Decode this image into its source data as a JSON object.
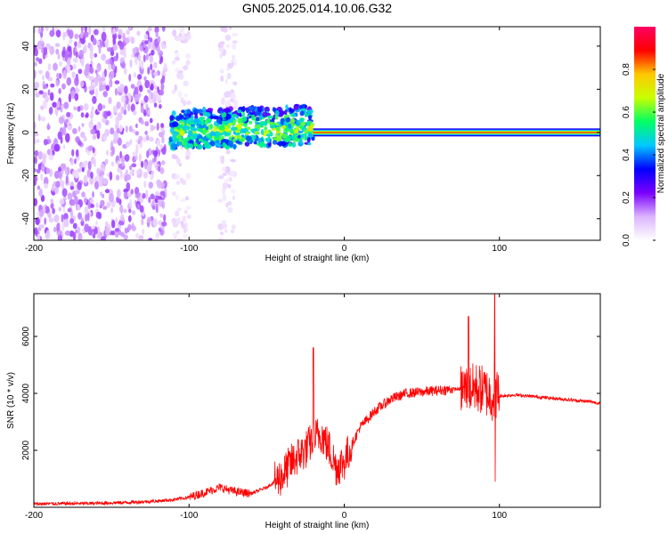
{
  "title": "GN05.2025.014.10.06.G32",
  "chart_data": [
    {
      "type": "heatmap",
      "title": "GN05.2025.014.10.06.G32",
      "xlabel": "Height of straight line (km)",
      "ylabel": "Frequency (Hz)",
      "xlim": [
        -200,
        165
      ],
      "ylim": [
        -50,
        49
      ],
      "x_ticks": [
        -200,
        -100,
        0,
        100
      ],
      "y_ticks": [
        -40,
        -20,
        0,
        20,
        40
      ],
      "grid": false,
      "colorbar": {
        "label": "Normalized spectral amplitude",
        "range": [
          0,
          1
        ],
        "ticks": [
          "0.0",
          "0.2",
          "0.4",
          "0.6",
          "0.8"
        ],
        "colors": [
          "#ffffff",
          "#dcb4ff",
          "#7a00ff",
          "#0000ff",
          "#00c8ff",
          "#00ff64",
          "#c8ff00",
          "#ffc800",
          "#ff0000",
          "#ff0064"
        ]
      },
      "regions": [
        {
          "x": [
            -200,
            -115
          ],
          "f": [
            -50,
            49
          ],
          "amplitude": 0.12,
          "pattern": "diffuse"
        },
        {
          "x": [
            -115,
            -60
          ],
          "f": [
            -50,
            49
          ],
          "amplitude": 0.05,
          "pattern": "sparse"
        },
        {
          "x": [
            -112,
            -20
          ],
          "f": [
            -8,
            10
          ],
          "amplitude": 0.35,
          "pattern": "band"
        },
        {
          "x": [
            -20,
            165
          ],
          "f": [
            -2,
            2
          ],
          "amplitude": 0.85,
          "pattern": "line"
        }
      ]
    },
    {
      "type": "line",
      "xlabel": "Height of straight line (km)",
      "ylabel": "SNR (10 * v/v)",
      "xlim": [
        -200,
        165
      ],
      "ylim": [
        0,
        7500
      ],
      "x_ticks": [
        -200,
        -100,
        0,
        100
      ],
      "y_ticks": [
        2000,
        4000,
        6000
      ],
      "grid": false,
      "color": "#ff0000",
      "series": [
        {
          "x": [
            -200,
            -180,
            -160,
            -140,
            -120,
            -110,
            -100,
            -90,
            -80,
            -75,
            -70,
            -60,
            -50,
            -40,
            -35,
            -30,
            -25,
            -20,
            -15,
            -10,
            -5,
            0,
            5,
            10,
            20,
            30,
            40,
            50,
            60,
            70,
            80,
            85,
            90,
            95,
            98,
            100,
            110,
            120,
            130,
            140,
            150,
            160,
            165
          ],
          "values": [
            120,
            130,
            140,
            170,
            220,
            270,
            350,
            520,
            700,
            620,
            550,
            480,
            700,
            1100,
            1500,
            1800,
            2000,
            2400,
            2600,
            2100,
            1400,
            1600,
            2200,
            2800,
            3400,
            3800,
            4000,
            4050,
            4100,
            4150,
            4150,
            4200,
            4100,
            3900,
            4000,
            3900,
            3950,
            3900,
            3850,
            3800,
            3750,
            3700,
            3650
          ]
        }
      ],
      "annotations": [
        {
          "x": -20,
          "max": 5600
        },
        {
          "x": 80,
          "max": 6700
        },
        {
          "x": 97,
          "max": 7500,
          "min": 900
        }
      ]
    }
  ]
}
